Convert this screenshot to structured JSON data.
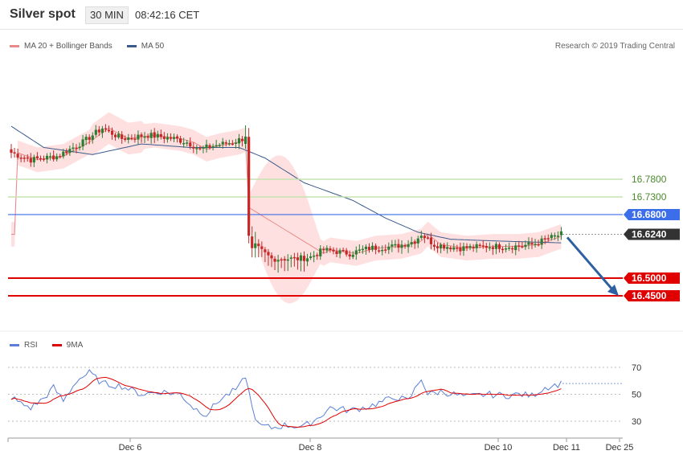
{
  "header": {
    "title": "Silver spot",
    "timeframe": "30 MIN",
    "time": "08:42:16 CET"
  },
  "legend": {
    "ma20": "MA 20 + Bollinger Bands",
    "ma50": "MA 50",
    "rsi": "RSI",
    "rsi_ma": "9MA"
  },
  "copyright": "Research © 2019 Trading Central",
  "colors": {
    "bull": "#2e7d32",
    "bear": "#c62828",
    "bands": "#ffd6d6",
    "ma20": "#e88a8a",
    "ma50": "#3b5b8c",
    "green_level": "#c5e3b0",
    "blue_level": "#3b6ee8",
    "red_level": "#e00000",
    "arrow": "#2e5fa0",
    "current": "#333333"
  },
  "chart_data": {
    "type": "candlestick",
    "y_range": [
      16.38,
      16.95
    ],
    "x_ticks": [
      "Dec 6",
      "Dec 8",
      "Dec 10",
      "Dec 11",
      "Dec 25"
    ],
    "levels": [
      {
        "value": 16.78,
        "label": "16.7800",
        "style": "green"
      },
      {
        "value": 16.73,
        "label": "16.7300",
        "style": "green"
      },
      {
        "value": 16.68,
        "label": "16.6800",
        "style": "blue"
      },
      {
        "value": 16.624,
        "label": "16.6240",
        "style": "current"
      },
      {
        "value": 16.5,
        "label": "16.5000",
        "style": "red"
      },
      {
        "value": 16.45,
        "label": "16.4500",
        "style": "red"
      }
    ],
    "forecast_arrow": {
      "from": 16.62,
      "to": 16.45
    },
    "rsi": {
      "ticks": [
        30,
        50,
        70
      ],
      "y_range": [
        20,
        80
      ]
    }
  }
}
